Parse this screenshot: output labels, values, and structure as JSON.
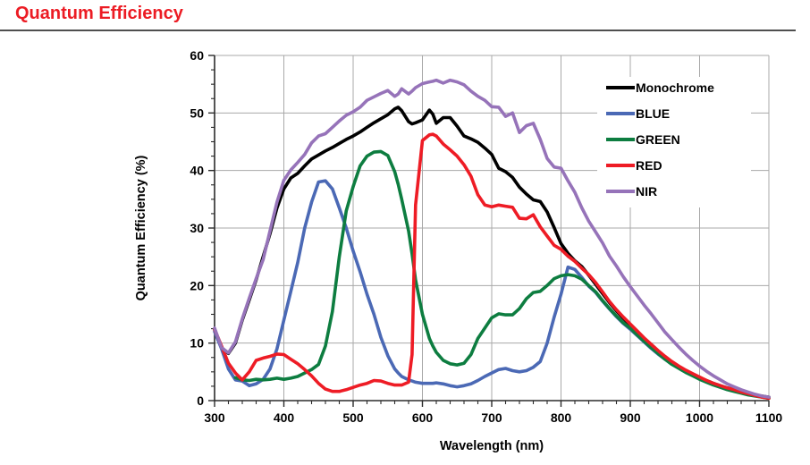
{
  "header": {
    "title": "Quantum Efficiency"
  },
  "style": {
    "title_color": "#EC1C24",
    "rule_color": "#4F4F4F",
    "grid_color": "#A8A8A8",
    "axis_color": "#2B2B2B",
    "text_color": "#000000",
    "background": "#FFFFFF",
    "legend_background": "#FFFFFF"
  },
  "chart_data": {
    "type": "line",
    "title": "",
    "xlabel": "Wavelength (nm)",
    "ylabel": "Quantum Efficiency  (%)",
    "xlim": [
      300,
      1100
    ],
    "ylim": [
      0,
      60
    ],
    "x_major_ticks": [
      300,
      400,
      500,
      600,
      700,
      800,
      900,
      1000,
      1100
    ],
    "y_major_ticks": [
      0,
      10,
      20,
      30,
      40,
      50,
      60
    ],
    "x_minor_step": 20,
    "y_minor_step": 2.5,
    "grid": "major",
    "legend_position": "upper-right",
    "x": [
      300,
      310,
      320,
      330,
      340,
      350,
      360,
      370,
      380,
      390,
      400,
      410,
      420,
      430,
      440,
      450,
      460,
      470,
      480,
      490,
      500,
      510,
      520,
      530,
      540,
      550,
      560,
      565,
      570,
      580,
      585,
      590,
      600,
      610,
      615,
      620,
      630,
      640,
      650,
      660,
      670,
      680,
      690,
      700,
      710,
      720,
      730,
      740,
      750,
      760,
      770,
      780,
      790,
      800,
      810,
      820,
      830,
      840,
      850,
      860,
      870,
      880,
      890,
      900,
      910,
      920,
      930,
      940,
      950,
      960,
      970,
      980,
      990,
      1000,
      1010,
      1020,
      1030,
      1040,
      1050,
      1060,
      1070,
      1080,
      1090,
      1100
    ],
    "series": [
      {
        "name": "Monochrome",
        "color": "#000000",
        "values": [
          12.3,
          9.2,
          8.2,
          10.0,
          14.0,
          17.5,
          21.0,
          25.0,
          29.0,
          33.5,
          36.8,
          38.7,
          39.5,
          40.8,
          42.0,
          42.7,
          43.4,
          44.0,
          44.7,
          45.4,
          46.0,
          46.7,
          47.5,
          48.3,
          49.0,
          49.7,
          50.7,
          51.0,
          50.4,
          48.5,
          48.1,
          48.3,
          48.8,
          50.5,
          49.8,
          48.2,
          49.2,
          49.2,
          47.7,
          46.0,
          45.5,
          44.9,
          43.9,
          42.8,
          40.4,
          39.8,
          38.8,
          37.1,
          35.9,
          34.9,
          34.6,
          32.8,
          30.1,
          27.3,
          25.6,
          24.3,
          23.3,
          21.8,
          20.2,
          18.6,
          17.0,
          15.6,
          14.3,
          13.1,
          11.9,
          10.7,
          9.6,
          8.5,
          7.5,
          6.6,
          5.9,
          5.2,
          4.6,
          4.0,
          3.5,
          3.0,
          2.6,
          2.2,
          1.9,
          1.6,
          1.3,
          1.0,
          0.8,
          0.6
        ]
      },
      {
        "name": "BLUE",
        "color": "#4B69B5",
        "values": [
          12.0,
          9.0,
          5.5,
          3.6,
          3.4,
          2.6,
          2.9,
          3.7,
          5.5,
          9.0,
          14.0,
          19.0,
          24.0,
          30.0,
          34.5,
          38.0,
          38.2,
          36.8,
          33.5,
          30.0,
          26.0,
          22.4,
          18.5,
          15.0,
          11.0,
          7.8,
          5.5,
          4.8,
          4.2,
          3.6,
          3.4,
          3.2,
          3.0,
          3.0,
          3.0,
          3.1,
          2.9,
          2.6,
          2.4,
          2.6,
          2.9,
          3.5,
          4.2,
          4.8,
          5.4,
          5.6,
          5.2,
          5.0,
          5.2,
          5.8,
          6.8,
          10.0,
          14.5,
          18.5,
          23.2,
          22.8,
          21.4,
          19.9,
          18.8,
          17.3,
          15.9,
          14.6,
          13.4,
          12.4,
          11.3,
          10.2,
          9.1,
          8.1,
          7.2,
          6.4,
          5.7,
          5.0,
          4.4,
          3.8,
          3.3,
          2.9,
          2.5,
          2.1,
          1.8,
          1.5,
          1.2,
          0.9,
          0.7,
          0.5
        ]
      },
      {
        "name": "GREEN",
        "color": "#0D7D40",
        "values": [
          null,
          null,
          null,
          4.0,
          3.6,
          3.5,
          3.7,
          3.6,
          3.7,
          3.9,
          3.7,
          3.9,
          4.2,
          4.8,
          5.4,
          6.3,
          9.5,
          15.5,
          25.0,
          33.0,
          37.2,
          40.8,
          42.5,
          43.2,
          43.3,
          42.6,
          39.8,
          37.6,
          35.0,
          29.5,
          25.5,
          21.0,
          15.0,
          10.8,
          9.5,
          8.4,
          7.0,
          6.4,
          6.2,
          6.5,
          8.0,
          10.8,
          12.6,
          14.4,
          15.1,
          14.9,
          14.9,
          16.0,
          17.7,
          18.8,
          19.0,
          20.0,
          21.2,
          21.7,
          21.9,
          21.7,
          21.1,
          20.0,
          18.9,
          17.4,
          16.0,
          14.7,
          13.5,
          12.6,
          11.4,
          10.3,
          9.2,
          8.2,
          7.2,
          6.3,
          5.6,
          4.9,
          4.3,
          3.7,
          3.2,
          2.7,
          2.3,
          1.9,
          1.6,
          1.3,
          1.0,
          0.8,
          0.6,
          0.4
        ]
      },
      {
        "name": "RED",
        "color": "#EE1C25",
        "values": [
          12.4,
          9.5,
          6.5,
          4.8,
          3.6,
          5.0,
          7.0,
          7.4,
          7.7,
          8.1,
          8.0,
          7.2,
          6.4,
          5.4,
          4.3,
          3.0,
          2.0,
          1.6,
          1.6,
          1.9,
          2.3,
          2.7,
          3.0,
          3.5,
          3.4,
          3.0,
          2.7,
          2.7,
          2.7,
          3.2,
          8.0,
          34.0,
          45.2,
          46.2,
          46.3,
          46.0,
          44.6,
          43.6,
          42.5,
          41.0,
          39.0,
          35.8,
          34.0,
          33.7,
          34.0,
          33.8,
          33.6,
          31.7,
          31.6,
          32.3,
          30.2,
          28.6,
          27.0,
          26.3,
          25.1,
          24.2,
          23.0,
          21.9,
          20.5,
          18.9,
          17.2,
          15.8,
          14.5,
          13.3,
          12.1,
          10.9,
          9.8,
          8.7,
          7.7,
          6.8,
          6.0,
          5.3,
          4.7,
          4.1,
          3.5,
          3.0,
          2.6,
          2.2,
          1.9,
          1.5,
          1.2,
          0.9,
          0.6,
          0.4
        ]
      },
      {
        "name": "NIR",
        "color": "#9673B9",
        "values": [
          12.6,
          9.2,
          8.3,
          10.2,
          14.2,
          17.8,
          21.2,
          24.5,
          29.5,
          34.5,
          38.3,
          40.1,
          41.4,
          42.8,
          44.8,
          46.0,
          46.4,
          47.5,
          48.6,
          49.6,
          50.2,
          51.0,
          52.2,
          52.8,
          53.4,
          53.9,
          52.9,
          53.3,
          54.2,
          53.3,
          53.8,
          54.4,
          55.1,
          55.4,
          55.5,
          55.7,
          55.2,
          55.7,
          55.4,
          54.9,
          53.8,
          52.9,
          52.2,
          51.1,
          51.0,
          49.4,
          50.0,
          46.6,
          47.8,
          48.2,
          45.4,
          42.1,
          40.6,
          40.4,
          38.2,
          36.2,
          33.5,
          31.2,
          29.3,
          27.4,
          25.1,
          23.4,
          21.5,
          19.8,
          18.2,
          16.6,
          15.1,
          13.5,
          11.9,
          10.6,
          9.3,
          8.1,
          7.0,
          6.0,
          5.1,
          4.3,
          3.6,
          2.9,
          2.4,
          1.9,
          1.5,
          1.1,
          0.8,
          0.6
        ]
      }
    ]
  }
}
